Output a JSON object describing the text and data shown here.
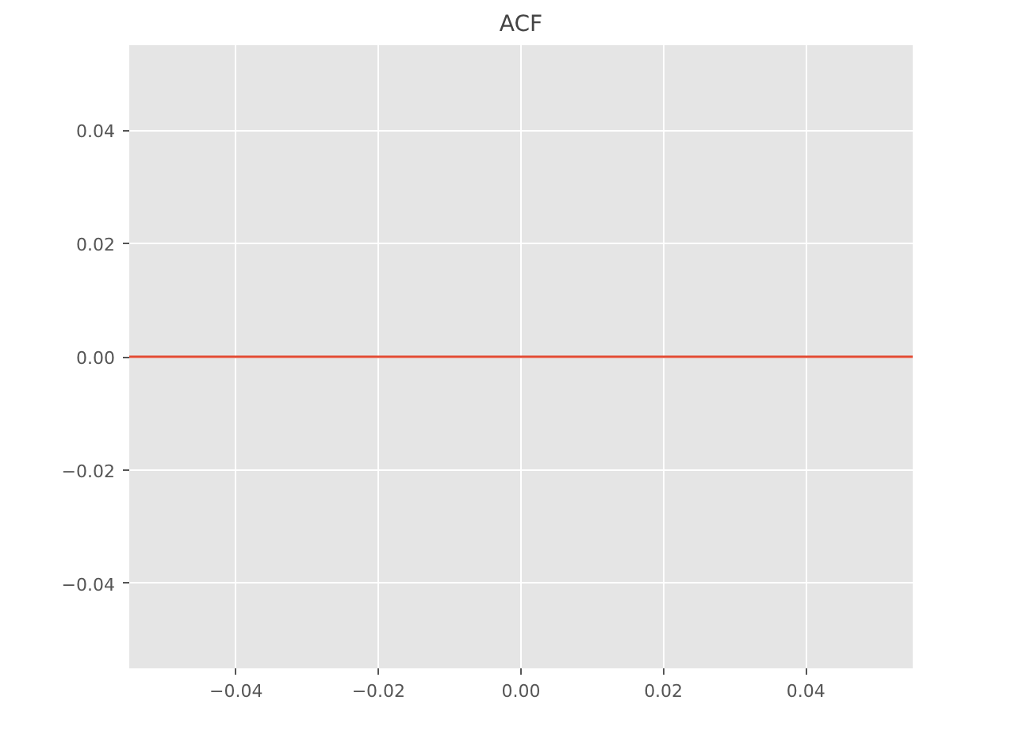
{
  "chart_data": {
    "type": "line",
    "title": "ACF",
    "x": [
      -0.055,
      0.055
    ],
    "series": [
      {
        "color": "#e24a33",
        "values": [
          0,
          0
        ]
      }
    ],
    "xlim": [
      -0.055,
      0.055
    ],
    "ylim": [
      -0.055,
      0.055
    ],
    "xticks": [
      {
        "value": -0.04,
        "label": "−0.04"
      },
      {
        "value": -0.02,
        "label": "−0.02"
      },
      {
        "value": 0,
        "label": "0.00"
      },
      {
        "value": 0.02,
        "label": "0.02"
      },
      {
        "value": 0.04,
        "label": "0.04"
      }
    ],
    "yticks": [
      {
        "value": -0.04,
        "label": "−0.04"
      },
      {
        "value": -0.02,
        "label": "−0.02"
      },
      {
        "value": 0,
        "label": "0.00"
      },
      {
        "value": 0.02,
        "label": "0.02"
      },
      {
        "value": 0.04,
        "label": "0.04"
      }
    ],
    "grid": true,
    "line_style": "solid"
  }
}
